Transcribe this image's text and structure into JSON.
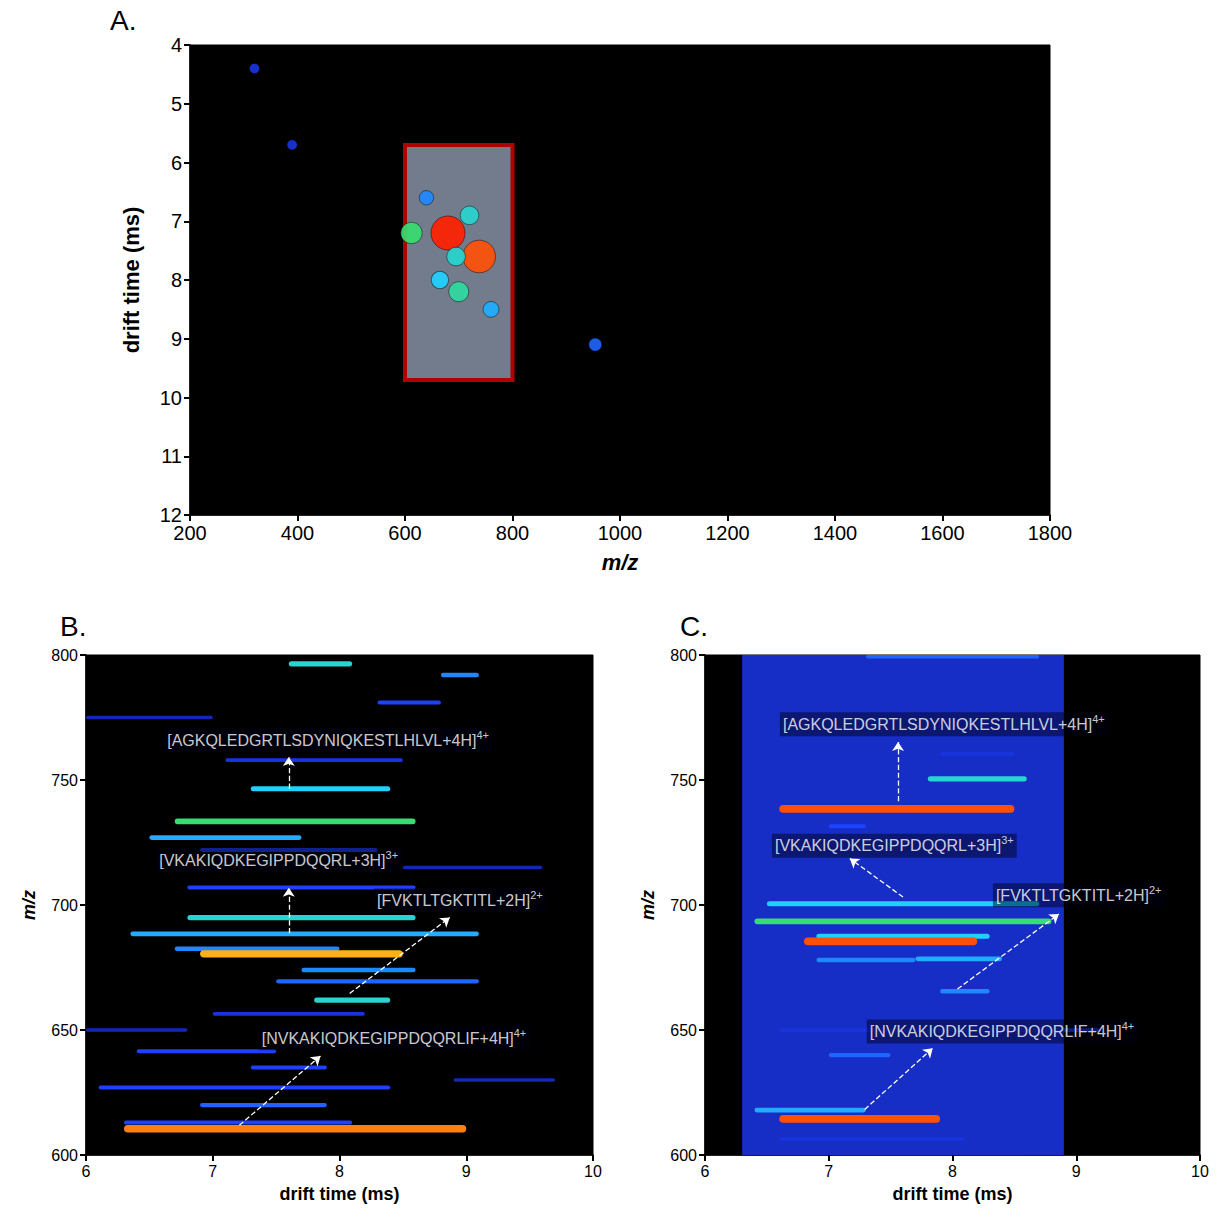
{
  "chart_data": [
    {
      "type": "scatter",
      "panel_label": "A.",
      "x_label": "m/z",
      "y_label": "drift time (ms)",
      "xlim": [
        200,
        1800
      ],
      "xticks": [
        200,
        400,
        600,
        800,
        1000,
        1200,
        1400,
        1600,
        1800
      ],
      "ylim": [
        4,
        12
      ],
      "yticks": [
        4,
        5,
        6,
        7,
        8,
        9,
        10,
        11,
        12
      ],
      "x": [
        320,
        390,
        640,
        720,
        680,
        738,
        612,
        695,
        665,
        700,
        760,
        954
      ],
      "y": [
        4.4,
        5.7,
        6.6,
        6.9,
        7.2,
        7.6,
        7.2,
        7.6,
        8.0,
        8.2,
        8.5,
        9.1
      ],
      "intensity": [
        15,
        15,
        30,
        45,
        100,
        95,
        55,
        45,
        40,
        50,
        35,
        25
      ],
      "intensity_range": [
        0,
        100
      ],
      "highlight": {
        "x": [
          600,
          800
        ],
        "y": [
          5.7,
          9.7
        ]
      }
    },
    {
      "type": "heatmap",
      "panel_label": "B.",
      "x_label": "drift time (ms)",
      "y_label": "m/z",
      "xlim": [
        6,
        10
      ],
      "xticks": [
        6,
        7,
        8,
        9,
        10
      ],
      "ylim": [
        600,
        800
      ],
      "yticks": [
        600,
        650,
        700,
        750,
        800
      ],
      "intensity_range": [
        0,
        100
      ],
      "streaks": {
        "x_start": [
          7.6,
          8.8,
          8.3,
          7.1,
          7.3,
          6.7,
          6.5,
          6.9,
          6.8,
          6.8,
          6.35,
          6.7,
          6.9,
          7.7,
          7.5,
          7.8,
          7.0,
          6.4,
          7.3,
          6.1,
          6.9,
          6.3,
          6.3,
          6.0,
          8.5,
          6.0,
          8.9
        ],
        "x_end": [
          8.1,
          9.1,
          8.8,
          8.5,
          8.4,
          8.6,
          7.7,
          8.3,
          8.6,
          8.6,
          9.1,
          8.0,
          8.5,
          8.6,
          9.1,
          8.4,
          8.2,
          7.5,
          7.9,
          8.4,
          7.9,
          8.1,
          9.0,
          7.0,
          9.6,
          6.8,
          9.7
        ],
        "y": [
          796.5,
          792,
          781,
          758,
          746.5,
          733.5,
          727,
          722,
          707,
          695,
          688.5,
          682.5,
          680.5,
          674,
          669.5,
          662,
          656.5,
          641.5,
          635,
          627,
          620,
          613,
          610.5,
          775,
          715,
          650,
          630
        ],
        "intensity": [
          45,
          30,
          20,
          15,
          40,
          55,
          35,
          20,
          20,
          45,
          35,
          30,
          85,
          30,
          25,
          45,
          15,
          20,
          20,
          20,
          25,
          20,
          90,
          10,
          10,
          10,
          10
        ]
      },
      "annotations": [
        {
          "text": "[AGKQLEDGRTLSDYNIQKESTLHLVL+4H]",
          "superscript": "4+",
          "xy": [
            7.6,
            746.5
          ],
          "arrow_to": [
            7.6,
            759.2
          ],
          "text_xy": [
            7.91,
            766
          ]
        },
        {
          "text": "[VKAKIQDKEGIPPDQQRL+3H]",
          "superscript": "3+",
          "xy": [
            7.6,
            688.7
          ],
          "arrow_to": [
            7.6,
            706.9
          ],
          "text_xy": [
            7.52,
            718
          ]
        },
        {
          "text": "[FVKTLTGKTITL+2H]",
          "superscript": "2+",
          "xy": [
            8.08,
            664.6
          ],
          "arrow_to": [
            8.87,
            695
          ],
          "text_xy": [
            8.95,
            701.8
          ]
        },
        {
          "text": "[NVKAKIQDKEGIPPDQQRLIF+4H]",
          "superscript": "4+",
          "xy": [
            7.21,
            611.9
          ],
          "arrow_to": [
            7.85,
            639.6
          ],
          "text_xy": [
            8.43,
            646.7
          ]
        }
      ]
    },
    {
      "type": "heatmap",
      "panel_label": "C.",
      "x_label": "drift time (ms)",
      "y_label": "m/z",
      "xlim": [
        6,
        10
      ],
      "xticks": [
        6,
        7,
        8,
        9,
        10
      ],
      "ylim": [
        600,
        800
      ],
      "yticks": [
        600,
        650,
        700,
        750,
        800
      ],
      "intensity_range": [
        0,
        100
      ],
      "baseline": {
        "x": [
          6.3,
          8.9
        ],
        "intensity": 12
      },
      "streaks": {
        "x_start": [
          7.3,
          7.8,
          6.6,
          7.0,
          6.5,
          6.4,
          6.9,
          6.8,
          7.7,
          6.9,
          7.9,
          6.6,
          7.0,
          6.4,
          6.6,
          6.6,
          7.9
        ],
        "x_end": [
          8.7,
          8.6,
          8.5,
          7.3,
          8.7,
          8.8,
          8.3,
          8.2,
          8.4,
          7.7,
          8.3,
          9.2,
          7.5,
          7.3,
          7.9,
          8.1,
          8.5
        ],
        "y": [
          799.5,
          750.5,
          738.5,
          731.5,
          700.5,
          693.5,
          687.5,
          685.5,
          678.5,
          678,
          665.5,
          650,
          640,
          618,
          614.5,
          606.5,
          760.5
        ],
        "intensity": [
          25,
          45,
          95,
          20,
          40,
          55,
          40,
          95,
          35,
          30,
          30,
          15,
          25,
          35,
          95,
          15,
          15
        ]
      },
      "annotations": [
        {
          "text": "[AGKQLEDGRTLSDYNIQKESTLHLVL+4H]",
          "superscript": "4+",
          "xy": [
            7.56,
            741.5
          ],
          "arrow_to": [
            7.56,
            765.2
          ],
          "text_xy": [
            7.93,
            772.3
          ]
        },
        {
          "text": "[VKAKIQDKEGIPPDQQRL+3H]",
          "superscript": "3+",
          "xy": [
            7.6,
            703.2
          ],
          "arrow_to": [
            7.17,
            718.6
          ],
          "text_xy": [
            7.53,
            723.7
          ]
        },
        {
          "text": "[FVKTLTGKTITL+2H]",
          "superscript": "2+",
          "xy": [
            8.04,
            666.4
          ],
          "arrow_to": [
            8.86,
            696.4
          ],
          "text_xy": [
            9.02,
            703.9
          ]
        },
        {
          "text": "[NVKAKIQDKEGIPPDQQRLIF+4H]",
          "superscript": "4+",
          "xy": [
            7.29,
            618.2
          ],
          "arrow_to": [
            7.84,
            642.7
          ],
          "text_xy": [
            8.4,
            649.4
          ]
        }
      ]
    }
  ]
}
